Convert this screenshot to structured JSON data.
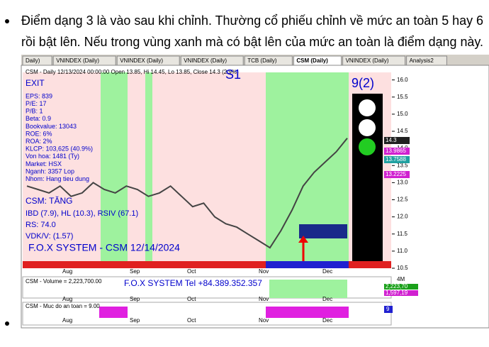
{
  "paragraph": {
    "lines": [
      "Điểm dạng 3 là vào sau khi chỉnh. Thường cổ phiếu chỉnh về mức an toàn 5 hay 6",
      "rồi bật lên. Nếu trong vùng xanh mà có bật lên của mức an toàn là điểm dạng này."
    ]
  },
  "tabs": [
    "Daily)",
    "VNINDEX (Daily)",
    "VNINDEX (Daily)",
    "VNINDEX (Daily)",
    "TCB (Daily)",
    "CSM (Daily)",
    "VNINDEX (Daily)",
    "Analysis2"
  ],
  "chart": {
    "type": "line",
    "header": "CSM - Daily 12/13/2024 00:00:00 Open 13.85, Hi 14.45, Lo 13.85, Close 14.3 (2.9%)",
    "exit": "EXIT",
    "info_lines": [
      "EPS: 839",
      "P/E: 17",
      "P/B: 1",
      "Beta: 0.9",
      "Bookvalue: 13043",
      "ROE: 6%",
      "ROA: 2%",
      "KLCP: 103,625 (40.9%)",
      "Von hoa: 1481 (Ty)",
      "Market: HSX",
      "Nganh: 3357 Lop",
      "Nhom: Hang tieu dung"
    ],
    "status": "CSM: TĂNG",
    "ratings": "IBD (7.9), HL (10.3), RSIV (67.1)",
    "rs": "RS: 74.0",
    "vdk": "VDK/V:  (1.57)",
    "watermark": "F.O.X SYSTEM - CSM 12/14/2024",
    "zone_label": "S1",
    "signal": "9(2)",
    "price_labels": [
      "14.3",
      "13.9865",
      "13.7588",
      "13.2225"
    ],
    "months": [
      "Aug",
      "Sep",
      "Oct",
      "Nov",
      "Dec"
    ],
    "ylim": [
      10.5,
      16.2
    ],
    "yticks": [
      {
        "value": 16,
        "label": "16.0"
      },
      {
        "value": 15.5,
        "label": "15.5"
      },
      {
        "value": 15,
        "label": "15.0"
      },
      {
        "value": 14.5,
        "label": "14.5"
      },
      {
        "value": 14,
        "label": "14.0"
      },
      {
        "value": 13.5,
        "label": "13.5"
      },
      {
        "value": 13,
        "label": "13.0"
      },
      {
        "value": 12.5,
        "label": "12.5"
      },
      {
        "value": 12,
        "label": "12.0"
      },
      {
        "value": 11.5,
        "label": "11.5"
      },
      {
        "value": 11,
        "label": "11.0"
      },
      {
        "value": 10.5,
        "label": "10.5"
      }
    ],
    "color": "#444444",
    "values": [
      12.9,
      12.8,
      12.7,
      12.9,
      12.6,
      12.7,
      13.0,
      12.8,
      12.7,
      12.9,
      12.8,
      12.6,
      12.7,
      12.9,
      12.6,
      12.3,
      12.4,
      12.0,
      11.8,
      11.7,
      11.5,
      11.3,
      11.1,
      11.6,
      12.2,
      12.9,
      13.3,
      13.6,
      13.9,
      14.3
    ]
  },
  "volume": {
    "header": "CSM - Volume = 2,223,700.00",
    "tel": "F.O.X SYSTEM Tel +84.389.352.357",
    "scale": "4M",
    "labels": [
      "2,223,70",
      "1,597,19"
    ]
  },
  "indicator": {
    "header": "CSM - Muc do an toan = 9.00",
    "value_label": "9"
  }
}
